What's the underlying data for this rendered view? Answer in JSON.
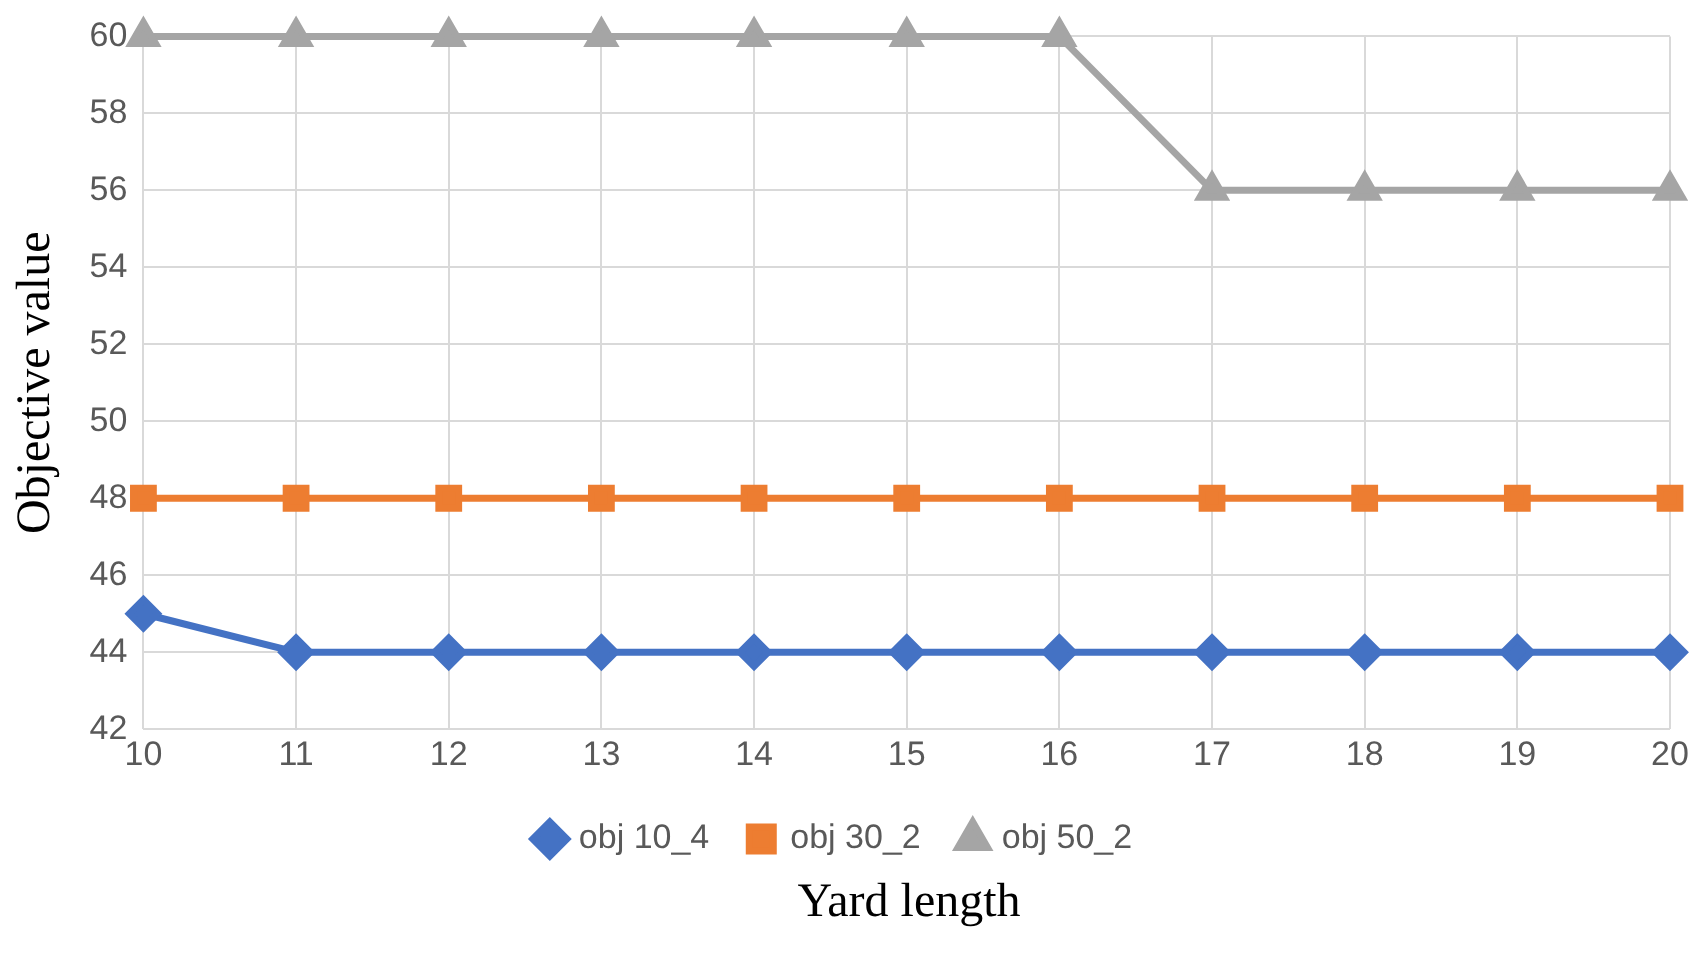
{
  "chart_data": {
    "type": "line",
    "xlabel": "Yard length",
    "ylabel": "Objective value",
    "x": [
      10,
      11,
      12,
      13,
      14,
      15,
      16,
      17,
      18,
      19,
      20
    ],
    "series": [
      {
        "name": "obj 10_4",
        "color": "#4472c4",
        "marker": "diamond",
        "values": [
          45,
          44,
          44,
          44,
          44,
          44,
          44,
          44,
          44,
          44,
          44
        ]
      },
      {
        "name": "obj 30_2",
        "color": "#ed7d31",
        "marker": "square",
        "values": [
          48,
          48,
          48,
          48,
          48,
          48,
          48,
          48,
          48,
          48,
          48
        ]
      },
      {
        "name": "obj 50_2",
        "color": "#a5a5a5",
        "marker": "triangle",
        "values": [
          60,
          60,
          60,
          60,
          60,
          60,
          60,
          56,
          56,
          56,
          56
        ]
      }
    ],
    "xlim": [
      10,
      20
    ],
    "xticks": [
      10,
      11,
      12,
      13,
      14,
      15,
      16,
      17,
      18,
      19,
      20
    ],
    "ylim": [
      42,
      60
    ],
    "yticks": [
      42,
      44,
      46,
      48,
      50,
      52,
      54,
      56,
      58,
      60
    ],
    "grid": true,
    "legend": "bottom",
    "line_style": "solid"
  }
}
